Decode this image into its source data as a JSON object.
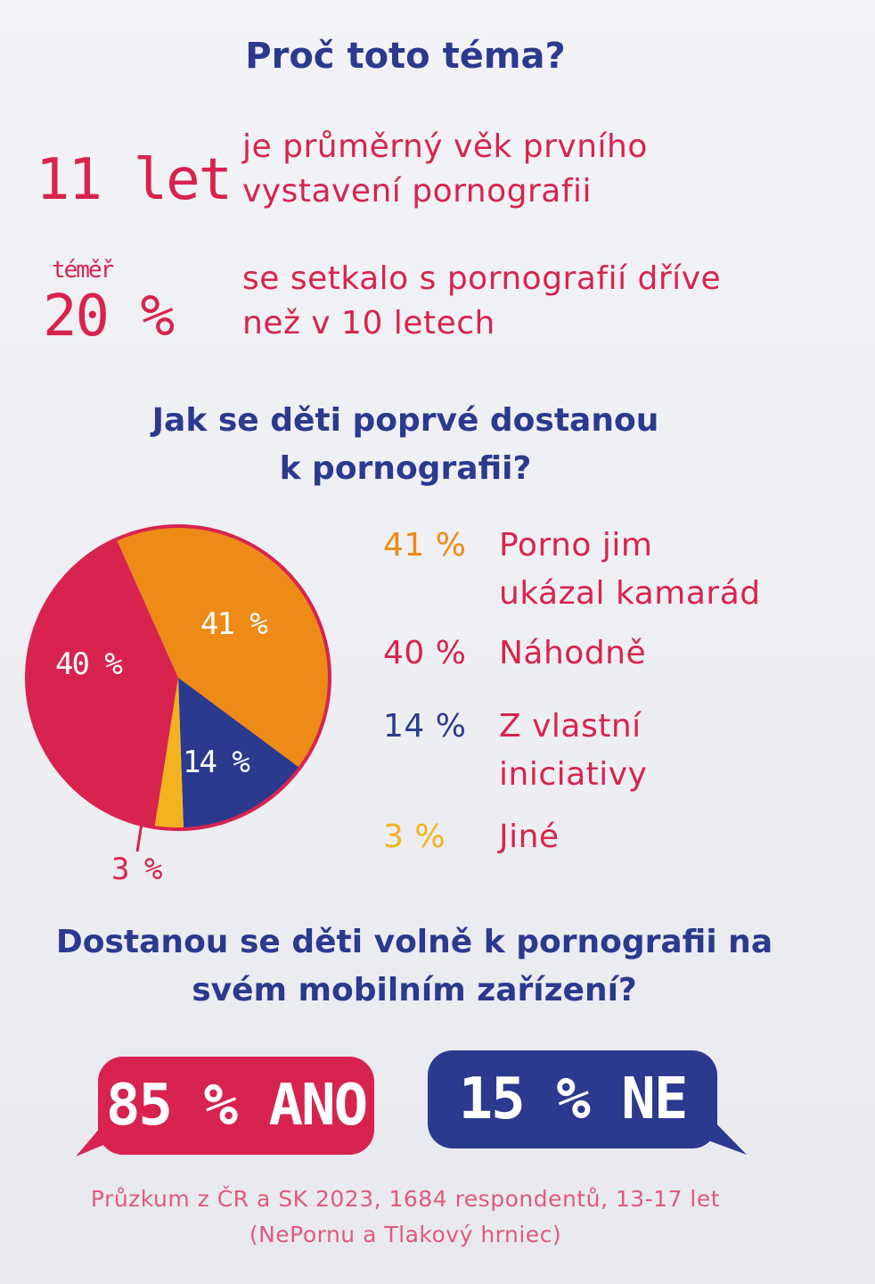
{
  "colors": {
    "navy": "#2b3a8f",
    "red": "#d8234f",
    "orange": "#ee8a16",
    "yellow": "#f3b21f"
  },
  "title": "Proč toto téma?",
  "stats": [
    {
      "value": "11 let",
      "prefix": "",
      "text_line1": "je průměrný věk prvního",
      "text_line2": "vystavení pornografii"
    },
    {
      "value": "20 %",
      "prefix": "téměř",
      "text_line1": "se setkalo s pornografií dříve",
      "text_line2": "než v 10 letech"
    }
  ],
  "pie_section": {
    "title_line1": "Jak se děti poprvé dostanou",
    "title_line2": "k pornografii?"
  },
  "chart_data": {
    "type": "pie",
    "slices": [
      {
        "value": 41,
        "label": "41 %",
        "category_line1": "Porno jim",
        "category_line2": "ukázal kamarád",
        "color": "#ee8a16"
      },
      {
        "value": 40,
        "label": "40 %",
        "category_line1": "Náhodně",
        "category_line2": "",
        "color": "#d8234f"
      },
      {
        "value": 14,
        "label": "14 %",
        "category_line1": "Z vlastní",
        "category_line2": "iniciativy",
        "color": "#2b3a8f"
      },
      {
        "value": 3,
        "label": "3 %",
        "category_line1": "Jiné",
        "category_line2": "",
        "color": "#f3b21f"
      }
    ],
    "pie_labels": [
      "41 %",
      "40 %",
      "14 %",
      "3 %"
    ]
  },
  "question": {
    "line1": "Dostanou se děti volně k pornografii na",
    "line2": "svém mobilním zařízení?"
  },
  "answers": [
    {
      "label": "85 % ANO",
      "color": "#d8234f"
    },
    {
      "label": "15 % NE",
      "color": "#2b3a8f"
    }
  ],
  "footer": {
    "line1": "Průzkum z ČR a SK 2023, 1684 respondentů, 13-17 let",
    "line2": "(NePornu a Tlakový hrniec)"
  }
}
